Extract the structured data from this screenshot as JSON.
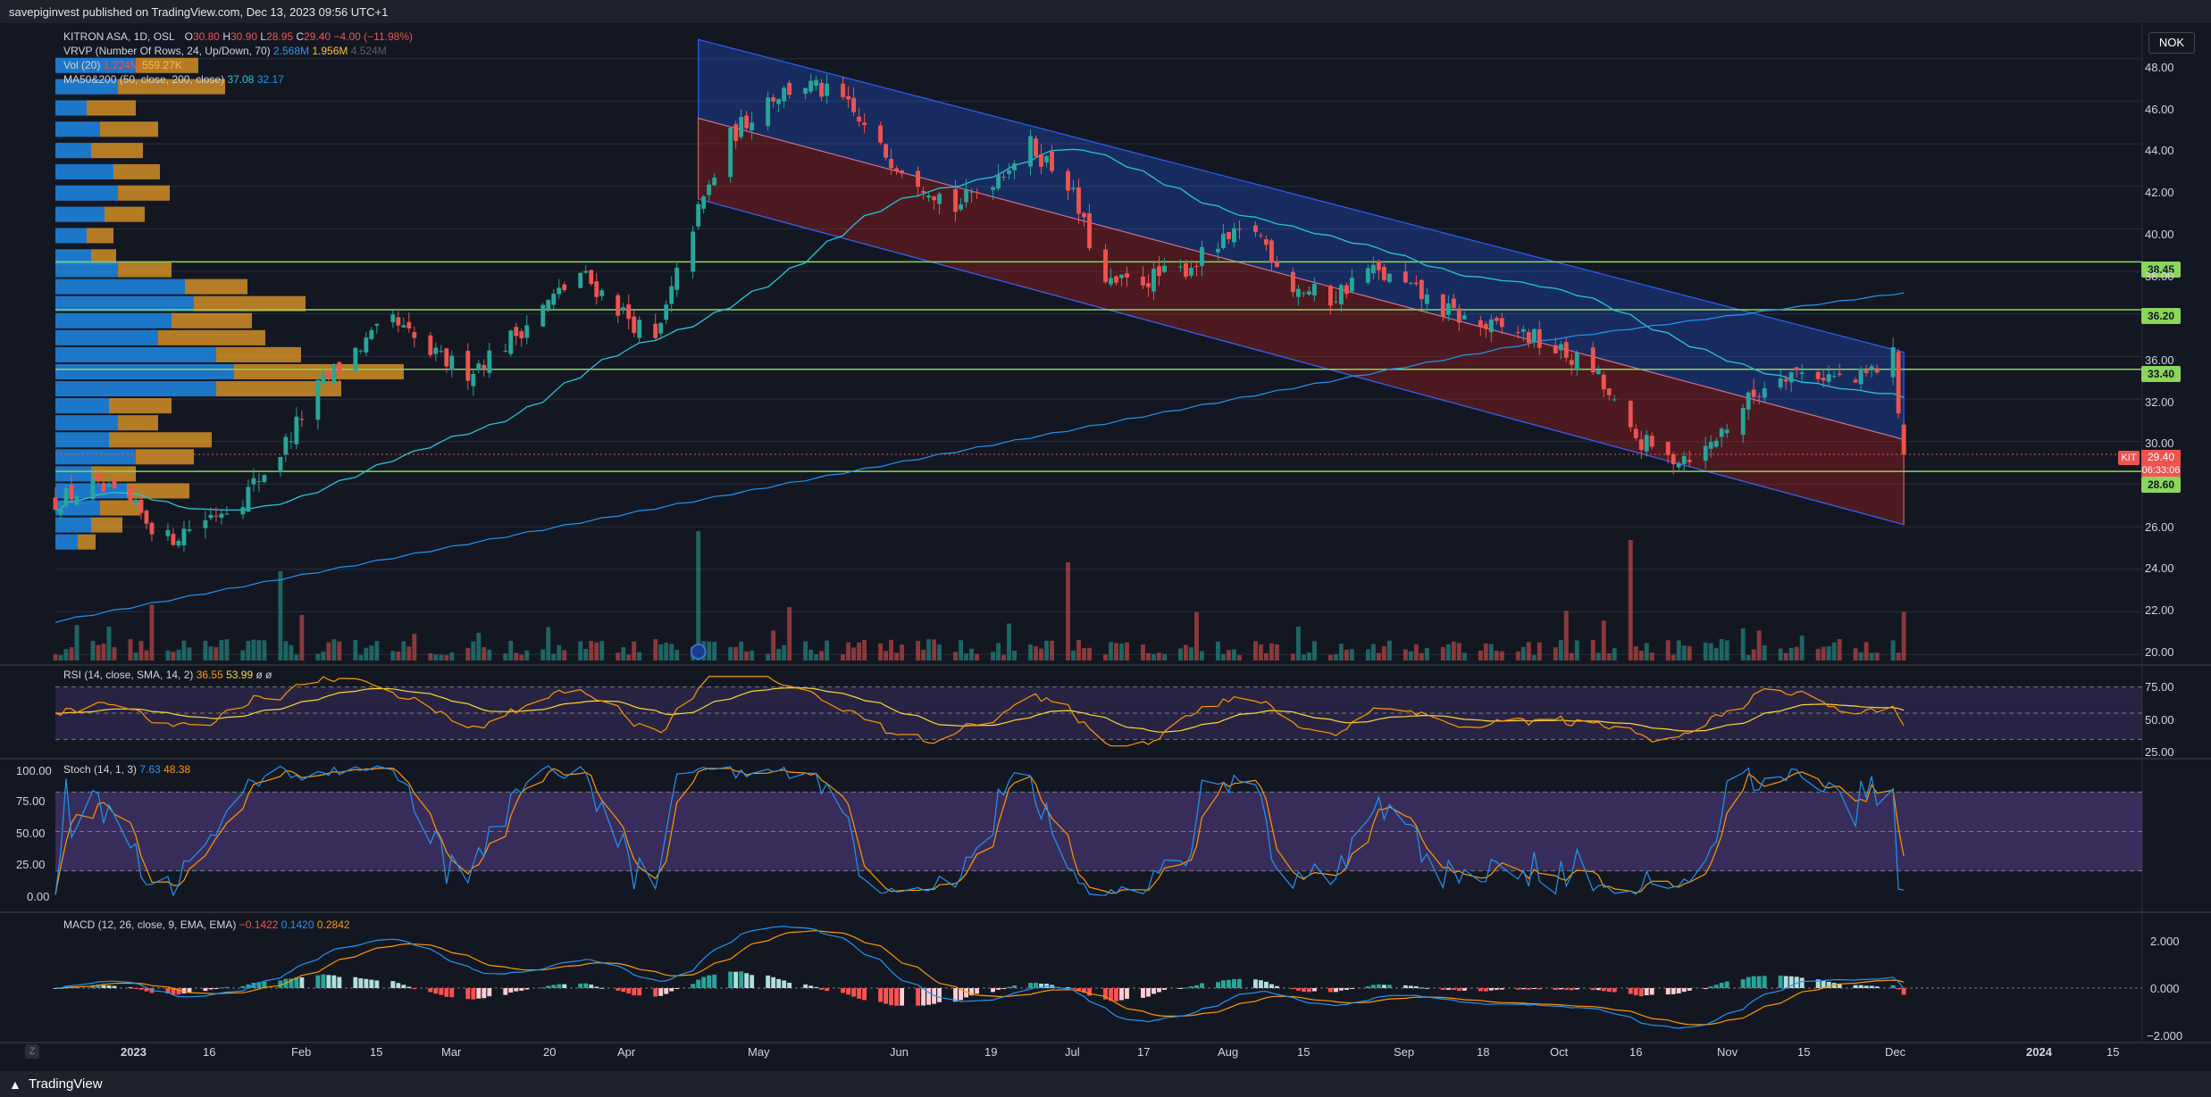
{
  "publisher": "savepiginvest published on TradingView.com, Dec 13, 2023 09:56 UTC+1",
  "currency": "NOK",
  "footer_brand": "TradingView",
  "zoom_label": "Z",
  "colors": {
    "up": "#26a69a",
    "down": "#ef5350",
    "bg": "#131722",
    "grid": "#2a2e39",
    "green_line": "#8bd65a",
    "channel_blue": "#2962ff",
    "channel_red": "#b71c1c"
  },
  "main_legend": {
    "symbol": "KITRON ASA, 1D, OSL",
    "ohlc": {
      "o_label": "O",
      "o": "30.80",
      "h_label": "H",
      "h": "30.90",
      "l_label": "L",
      "l": "28.95",
      "c_label": "C",
      "c": "29.40",
      "chg": "−4.00 (−11.98%)"
    },
    "vrvp": {
      "label": "VRVP (Number Of Rows, 24, Up/Down, 70)",
      "v1": "2.568M",
      "v2": "1.956M",
      "v3": "4.524M"
    },
    "vol": {
      "label": "Vol (20)",
      "v1": "1.224M",
      "v2": "559.27K"
    },
    "ma": {
      "label": "MA50&200 (50, close, 200, close)",
      "v1": "37.08",
      "v2": "32.17"
    }
  },
  "price_badge": {
    "ticker": "KIT",
    "price": "29.40",
    "countdown": "06:33:06"
  },
  "level_badges": [
    "38.45",
    "36.20",
    "33.40",
    "28.60"
  ],
  "rsi": {
    "label": "RSI (14, close, SMA, 14, 2)",
    "v1": "36.55",
    "v2": "53.99",
    "v3": "ø",
    "v4": "ø",
    "ticks": [
      "75.00",
      "50.00",
      "25.00"
    ]
  },
  "stoch": {
    "label": "Stoch (14, 1, 3)",
    "v1": "7.63",
    "v2": "48.38",
    "ticks": [
      "100.00",
      "75.00",
      "50.00",
      "25.00",
      "0.00"
    ]
  },
  "macd": {
    "label": "MACD (12, 26, close, 9, EMA, EMA)",
    "v1": "−0.1422",
    "v2": "0.1420",
    "v3": "0.2842",
    "ticks": [
      "2.000",
      "0.000",
      "−2.000"
    ]
  },
  "chart_data": {
    "type": "candlestick",
    "symbol": "KITRON ASA",
    "interval": "1D",
    "exchange": "OSL",
    "currency": "NOK",
    "ylim": [
      19.5,
      49.5
    ],
    "y_ticks": [
      "48.00",
      "46.00",
      "44.00",
      "42.00",
      "40.00",
      "38.00",
      "36.00",
      "34.00",
      "32.00",
      "30.00",
      "28.00",
      "26.00",
      "24.00",
      "22.00",
      "20.00"
    ],
    "x_ticks": [
      "2023",
      "16",
      "Feb",
      "15",
      "Mar",
      "20",
      "Apr",
      "May",
      "Jun",
      "19",
      "Jul",
      "17",
      "Aug",
      "15",
      "Sep",
      "18",
      "Oct",
      "16",
      "Nov",
      "15",
      "Dec",
      "2024",
      "15"
    ],
    "horizontal_levels": [
      38.45,
      36.2,
      33.4,
      28.6
    ],
    "last_price": 29.4,
    "close_path": [
      [
        "2023-01-02",
        27.2
      ],
      [
        "2023-01-09",
        27.9
      ],
      [
        "2023-01-16",
        27.0
      ],
      [
        "2023-01-23",
        25.4
      ],
      [
        "2023-01-30",
        26.4
      ],
      [
        "2023-02-06",
        27.4
      ],
      [
        "2023-02-13",
        29.5
      ],
      [
        "2023-02-20",
        32.5
      ],
      [
        "2023-02-27",
        34.3
      ],
      [
        "2023-03-06",
        35.6
      ],
      [
        "2023-03-13",
        34.1
      ],
      [
        "2023-03-20",
        33.3
      ],
      [
        "2023-03-27",
        34.6
      ],
      [
        "2023-04-03",
        36.3
      ],
      [
        "2023-04-10",
        37.9
      ],
      [
        "2023-04-17",
        36.3
      ],
      [
        "2023-04-24",
        34.6
      ],
      [
        "2023-05-01",
        40.2
      ],
      [
        "2023-05-08",
        44.3
      ],
      [
        "2023-05-15",
        46.2
      ],
      [
        "2023-05-22",
        46.8
      ],
      [
        "2023-05-29",
        46.0
      ],
      [
        "2023-06-05",
        43.7
      ],
      [
        "2023-06-12",
        42.4
      ],
      [
        "2023-06-19",
        41.0
      ],
      [
        "2023-06-26",
        42.4
      ],
      [
        "2023-07-03",
        43.9
      ],
      [
        "2023-07-10",
        42.2
      ],
      [
        "2023-07-17",
        37.3
      ],
      [
        "2023-07-24",
        37.6
      ],
      [
        "2023-07-31",
        38.0
      ],
      [
        "2023-08-07",
        39.2
      ],
      [
        "2023-08-14",
        40.0
      ],
      [
        "2023-08-21",
        37.3
      ],
      [
        "2023-08-28",
        36.7
      ],
      [
        "2023-09-04",
        38.1
      ],
      [
        "2023-09-11",
        37.3
      ],
      [
        "2023-09-18",
        36.2
      ],
      [
        "2023-09-25",
        35.4
      ],
      [
        "2023-10-02",
        35.2
      ],
      [
        "2023-10-09",
        34.3
      ],
      [
        "2023-10-16",
        33.4
      ],
      [
        "2023-10-23",
        30.3
      ],
      [
        "2023-10-30",
        29.2
      ],
      [
        "2023-11-06",
        29.6
      ],
      [
        "2023-11-13",
        31.7
      ],
      [
        "2023-11-20",
        33.3
      ],
      [
        "2023-11-27",
        33.2
      ],
      [
        "2023-12-04",
        32.8
      ],
      [
        "2023-12-11",
        34.0
      ],
      [
        "2023-12-13",
        29.4
      ]
    ],
    "annotations": [
      {
        "type": "channel",
        "label": "descending regression channel",
        "from": "2023-05-02",
        "to": "2023-12-13"
      }
    ]
  }
}
